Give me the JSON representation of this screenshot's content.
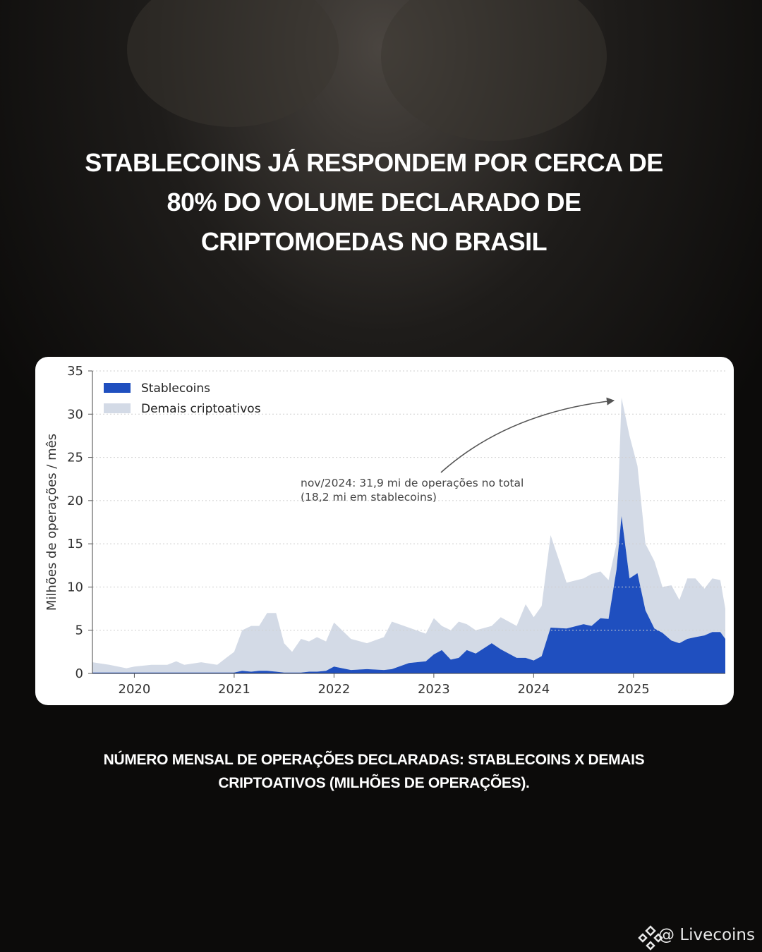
{
  "headline": [
    "STABLECOINS JÁ RESPONDEM POR CERCA DE",
    "80% DO VOLUME DECLARADO DE",
    "CRIPTOMOEDAS  NO BRASIL"
  ],
  "caption": [
    "NÚMERO MENSAL DE OPERAÇÕES DECLARADAS: STABLECOINS X DEMAIS",
    "CRIPTOATIVOS (MILHÕES DE OPERAÇÕES)."
  ],
  "brand": "@ Livecoins",
  "chart_data": {
    "type": "stacked_area",
    "y_label": "Milhões de operações / mês",
    "annotation": [
      "nov/2024: 31,9 mi de operações no total",
      "(18,2 mi em stablecoins)"
    ],
    "legend": "upper left",
    "grid": true,
    "xlim": [
      2019.58,
      2025.92
    ],
    "xticks": [
      2020,
      2021,
      2022,
      2023,
      2024,
      2025
    ],
    "ylim": [
      0,
      35
    ],
    "yticks": [
      0,
      5,
      10,
      15,
      20,
      25,
      30,
      35
    ],
    "x": [
      2019.58,
      2019.75,
      2019.92,
      2020.0,
      2020.17,
      2020.33,
      2020.42,
      2020.5,
      2020.67,
      2020.83,
      2020.92,
      2021.0,
      2021.08,
      2021.17,
      2021.25,
      2021.33,
      2021.42,
      2021.5,
      2021.58,
      2021.67,
      2021.75,
      2021.83,
      2021.92,
      2022.0,
      2022.17,
      2022.33,
      2022.5,
      2022.58,
      2022.75,
      2022.92,
      2023.0,
      2023.08,
      2023.17,
      2023.25,
      2023.33,
      2023.42,
      2023.58,
      2023.67,
      2023.83,
      2023.92,
      2024.0,
      2024.08,
      2024.17,
      2024.33,
      2024.5,
      2024.58,
      2024.67,
      2024.75,
      2024.83,
      2024.88,
      2024.96,
      2025.04,
      2025.12,
      2025.21,
      2025.29,
      2025.38,
      2025.46,
      2025.54,
      2025.62,
      2025.71,
      2025.79,
      2025.87,
      2025.92
    ],
    "series": [
      {
        "name": "Stablecoins",
        "color": "#1f4fbf",
        "values": [
          0.1,
          0.1,
          0.1,
          0.1,
          0.1,
          0.1,
          0.1,
          0.1,
          0.1,
          0.1,
          0.1,
          0.1,
          0.3,
          0.2,
          0.3,
          0.3,
          0.2,
          0.1,
          0.1,
          0.1,
          0.2,
          0.2,
          0.3,
          0.8,
          0.4,
          0.5,
          0.4,
          0.5,
          1.2,
          1.4,
          2.2,
          2.7,
          1.6,
          1.8,
          2.7,
          2.3,
          3.5,
          2.8,
          1.8,
          1.8,
          1.5,
          2.0,
          5.3,
          5.2,
          5.7,
          5.5,
          6.4,
          6.3,
          12.0,
          18.2,
          11.0,
          11.6,
          7.3,
          5.2,
          4.7,
          3.8,
          3.5,
          4.0,
          4.2,
          4.4,
          4.8,
          4.8,
          4.0
        ]
      },
      {
        "name": "Demais criptoativos",
        "color": "#d3dae6",
        "values": [
          1.2,
          0.9,
          0.5,
          0.7,
          0.9,
          0.9,
          1.3,
          0.9,
          1.2,
          0.9,
          1.7,
          2.4,
          4.7,
          5.3,
          5.2,
          6.7,
          6.8,
          3.4,
          2.4,
          3.9,
          3.5,
          4.0,
          3.4,
          5.1,
          3.6,
          3.0,
          3.8,
          5.5,
          4.1,
          3.2,
          4.2,
          2.8,
          3.4,
          4.2,
          3.0,
          2.7,
          2.0,
          3.7,
          3.7,
          6.2,
          5.0,
          5.8,
          10.7,
          5.3,
          5.3,
          6.0,
          5.4,
          4.5,
          3.0,
          13.7,
          16.5,
          12.4,
          7.7,
          7.8,
          5.3,
          6.4,
          5.0,
          7.0,
          6.8,
          5.4,
          6.2,
          6.0,
          3.5
        ]
      }
    ]
  }
}
